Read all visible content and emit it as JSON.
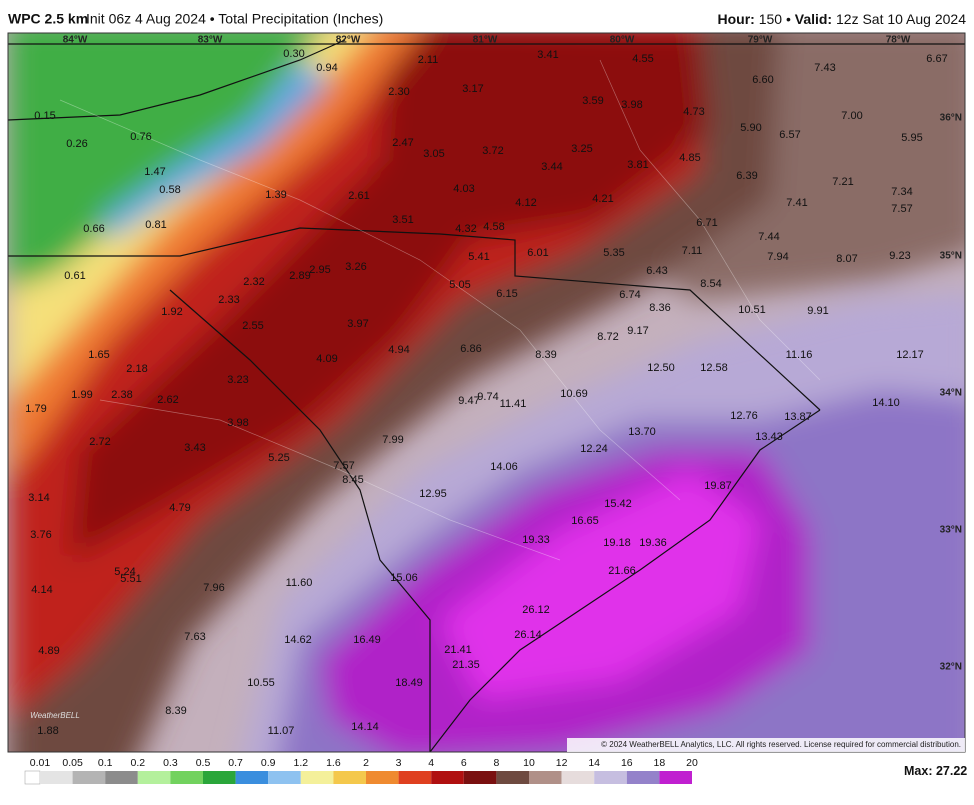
{
  "header": {
    "model": "WPC 2.5 km",
    "init": "Init 06z 4 Aug 2024 • Total Precipitation (Inches)",
    "hour_label": "Hour:",
    "hour": "150 •",
    "valid_label": "Valid:",
    "valid": "12z Sat 10 Aug 2024"
  },
  "map": {
    "longitudes": [
      "84°W",
      "83°W",
      "82°W",
      "81°W",
      "80°W",
      "79°W",
      "78°W"
    ],
    "latitudes": [
      "36°N",
      "35°N",
      "34°N",
      "33°N",
      "32°N"
    ],
    "values": [
      "0.30",
      "0.94",
      "2.11",
      "3.41",
      "4.55",
      "6.60",
      "7.43",
      "6.67",
      "0.15",
      "2.30",
      "3.17",
      "3.59",
      "3.98",
      "4.73",
      "7.00",
      "0.26",
      "0.76",
      "2.47",
      "3.05",
      "3.72",
      "3.25",
      "5.90",
      "6.57",
      "5.95",
      "1.47",
      "0.58",
      "3.44",
      "3.81",
      "4.85",
      "6.39",
      "7.21",
      "1.39",
      "2.61",
      "4.03",
      "4.12",
      "4.21",
      "7.41",
      "7.34",
      "7.57",
      "0.66",
      "0.81",
      "3.51",
      "4.32",
      "4.58",
      "6.71",
      "7.44",
      "0.61",
      "5.41",
      "6.01",
      "5.35",
      "7.11",
      "7.94",
      "8.07",
      "9.23",
      "2.32",
      "2.89",
      "2.95",
      "3.26",
      "5.05",
      "6.15",
      "6.43",
      "8.54",
      "6.74",
      "1.92",
      "2.33",
      "2.55",
      "3.97",
      "8.36",
      "10.51",
      "9.91",
      "1.65",
      "4.09",
      "4.94",
      "6.86",
      "8.39",
      "8.72",
      "9.17",
      "11.16",
      "12.17",
      "2.18",
      "3.23",
      "12.50",
      "12.58",
      "1.79",
      "1.99",
      "2.38",
      "2.62",
      "9.47",
      "9.74",
      "11.41",
      "10.69",
      "14.10",
      "3.98",
      "12.76",
      "13.87",
      "2.72",
      "3.43",
      "7.99",
      "13.70",
      "13.43",
      "12.24",
      "5.25",
      "7.57",
      "14.06",
      "8.45",
      "19.87",
      "3.14",
      "12.95",
      "15.42",
      "4.79",
      "16.65",
      "3.76",
      "19.33",
      "19.18",
      "19.36",
      "5.24",
      "5.51",
      "7.96",
      "11.60",
      "15.06",
      "21.66",
      "4.14",
      "26.12",
      "7.63",
      "14.62",
      "16.49",
      "26.14",
      "4.89",
      "21.41",
      "21.35",
      "10.55",
      "18.49",
      "8.39",
      "14.14",
      "11.07",
      "1.88"
    ],
    "logo": "WeatherBELL",
    "copyright": "© 2024 WeatherBELL Analytics, LLC. All rights reserved. License required for commercial distribution."
  },
  "legend": {
    "ticks": [
      "0.01",
      "0.05",
      "0.1",
      "0.2",
      "0.3",
      "0.5",
      "0.7",
      "0.9",
      "1.2",
      "1.6",
      "2",
      "3",
      "4",
      "6",
      "8",
      "10",
      "12",
      "14",
      "16",
      "18",
      "20"
    ],
    "max_label": "Max:",
    "max": "27.22"
  }
}
